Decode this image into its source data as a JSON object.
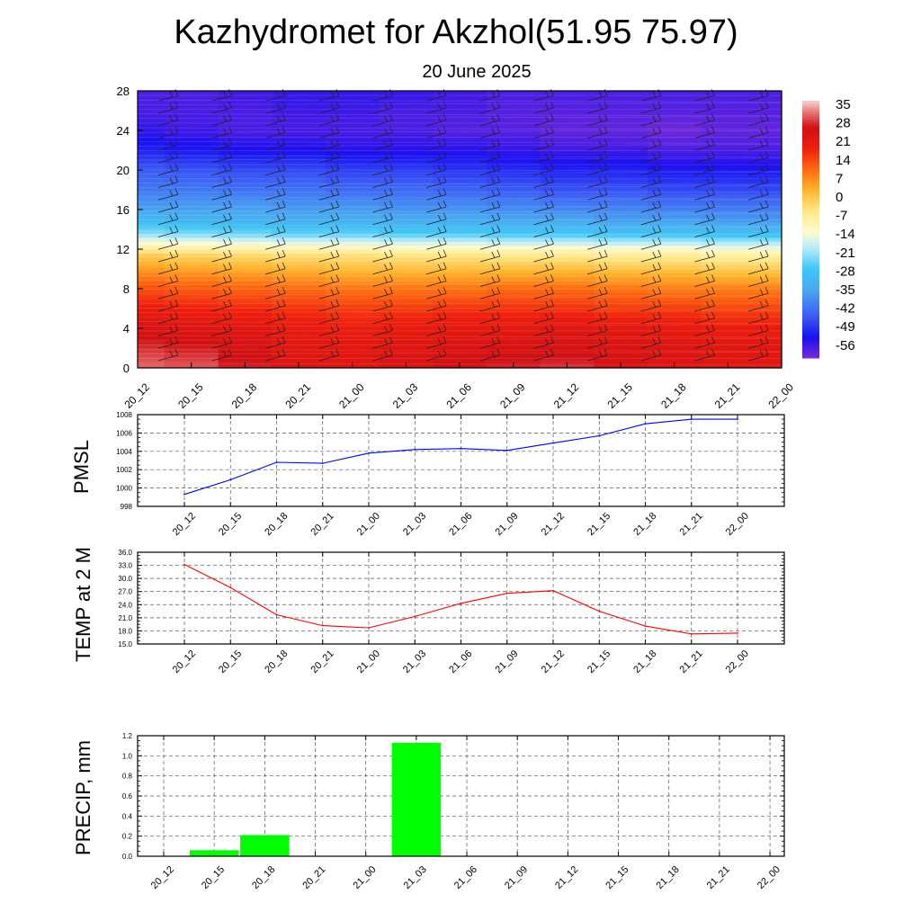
{
  "header": {
    "title": "Kazhydromet for Akzhol(51.95 75.97)",
    "subtitle": "20 June 2025"
  },
  "time_labels": [
    "20_12",
    "20_15",
    "20_18",
    "20_21",
    "21_00",
    "21_03",
    "21_06",
    "21_09",
    "21_12",
    "21_15",
    "21_18",
    "21_21",
    "22_00"
  ],
  "chart_data": [
    {
      "type": "heatmap",
      "name": "vertical temperature cross-section with wind barbs",
      "x": [
        "20_12",
        "20_15",
        "20_18",
        "20_21",
        "21_00",
        "21_03",
        "21_06",
        "21_09",
        "21_12",
        "21_15",
        "21_18",
        "21_21",
        "22_00"
      ],
      "y_ticks": [
        0,
        4,
        8,
        12,
        16,
        20,
        24,
        28
      ],
      "ylim": [
        0,
        28
      ],
      "colorbar_ticks": [
        35,
        28,
        21,
        14,
        7,
        0,
        -7,
        -14,
        -21,
        -28,
        -35,
        -42,
        -49,
        -56
      ],
      "colorbar_range": [
        -60,
        38
      ],
      "colorbar_stops": [
        {
          "v": -60,
          "color": "#7a2bd6"
        },
        {
          "v": -52,
          "color": "#1a10f0"
        },
        {
          "v": -44,
          "color": "#3b5cf5"
        },
        {
          "v": -34,
          "color": "#4aa8f0"
        },
        {
          "v": -26,
          "color": "#3fc6f5"
        },
        {
          "v": -18,
          "color": "#b6ecfb"
        },
        {
          "v": -12,
          "color": "#fffbd0"
        },
        {
          "v": -4,
          "color": "#ffe98c"
        },
        {
          "v": 4,
          "color": "#ffb52e"
        },
        {
          "v": 12,
          "color": "#ff6a10"
        },
        {
          "v": 20,
          "color": "#ee1e0e"
        },
        {
          "v": 28,
          "color": "#d11014"
        },
        {
          "v": 34,
          "color": "#e77a7a"
        },
        {
          "v": 38,
          "color": "#f6d2d2"
        }
      ],
      "temperature_profile_levels": [
        0,
        2,
        4,
        6,
        8,
        10,
        11.5,
        12.5,
        13.5,
        15,
        16.5,
        18,
        20,
        22,
        24,
        26,
        28
      ],
      "temperature_profiles": [
        [
          33,
          30,
          26,
          21,
          15,
          7,
          0,
          -10,
          -20,
          -30,
          -36,
          -40,
          -44,
          -50,
          -54,
          -56,
          -56
        ],
        [
          32,
          29,
          25,
          20,
          14,
          6,
          -1,
          -11,
          -21,
          -31,
          -36,
          -40,
          -45,
          -51,
          -55,
          -56,
          -56
        ],
        [
          29,
          27,
          24,
          19,
          13,
          5,
          -2,
          -12,
          -22,
          -31,
          -36,
          -41,
          -46,
          -52,
          -56,
          -56,
          -55
        ],
        [
          25,
          24,
          22,
          18,
          12,
          4,
          -3,
          -13,
          -23,
          -32,
          -37,
          -41,
          -46,
          -52,
          -56,
          -55,
          -54
        ],
        [
          24,
          24,
          21,
          17,
          11,
          3,
          -3,
          -13,
          -23,
          -32,
          -37,
          -42,
          -47,
          -53,
          -56,
          -55,
          -54
        ],
        [
          26,
          25,
          22,
          17,
          11,
          3,
          -4,
          -14,
          -24,
          -33,
          -38,
          -42,
          -47,
          -53,
          -56,
          -56,
          -54
        ],
        [
          28,
          26,
          23,
          18,
          11,
          3,
          -4,
          -14,
          -24,
          -33,
          -38,
          -43,
          -48,
          -53,
          -57,
          -56,
          -55
        ],
        [
          29,
          27,
          23,
          18,
          12,
          3,
          -5,
          -15,
          -25,
          -34,
          -39,
          -44,
          -49,
          -54,
          -57,
          -57,
          -56
        ],
        [
          30,
          27,
          24,
          18,
          12,
          3,
          -5,
          -15,
          -25,
          -34,
          -40,
          -45,
          -50,
          -55,
          -58,
          -57,
          -56
        ],
        [
          27,
          26,
          23,
          17,
          11,
          2,
          -6,
          -16,
          -26,
          -35,
          -40,
          -45,
          -50,
          -55,
          -58,
          -57,
          -56
        ],
        [
          25,
          25,
          22,
          17,
          10,
          2,
          -6,
          -16,
          -26,
          -35,
          -41,
          -46,
          -51,
          -56,
          -59,
          -57,
          -56
        ],
        [
          24,
          24,
          21,
          16,
          10,
          1,
          -7,
          -17,
          -27,
          -36,
          -41,
          -46,
          -51,
          -56,
          -58,
          -57,
          -56
        ],
        [
          24,
          24,
          21,
          16,
          10,
          1,
          -7,
          -17,
          -27,
          -36,
          -41,
          -46,
          -51,
          -56,
          -58,
          -57,
          -56
        ]
      ]
    },
    {
      "type": "line",
      "ylabel": "PMSL",
      "x": [
        "20_12",
        "20_15",
        "20_18",
        "20_21",
        "21_00",
        "21_03",
        "21_06",
        "21_09",
        "21_12",
        "21_15",
        "21_18",
        "21_21",
        "22_00"
      ],
      "y_ticks": [
        "998",
        "1000",
        "1002",
        "1004",
        "1006",
        "1008"
      ],
      "ylim": [
        998,
        1008
      ],
      "series": [
        {
          "values": [
            999.3,
            1000.9,
            1002.8,
            1002.7,
            1003.8,
            1004.2,
            1004.3,
            1004.1,
            1004.9,
            1005.7,
            1007.0,
            1007.5,
            1007.5
          ],
          "color": "#0000ff"
        }
      ],
      "grid": true
    },
    {
      "type": "line",
      "ylabel": "TEMP at 2 M",
      "x": [
        "20_12",
        "20_15",
        "20_18",
        "20_21",
        "21_00",
        "21_03",
        "21_06",
        "21_09",
        "21_12",
        "21_15",
        "21_18",
        "21_21",
        "22_00"
      ],
      "y_ticks": [
        "15.0",
        "18.0",
        "21.0",
        "24.0",
        "27.0",
        "30.0",
        "33.0",
        "36.0"
      ],
      "ylim": [
        15,
        36
      ],
      "series": [
        {
          "values": [
            33.2,
            27.9,
            21.7,
            19.2,
            18.7,
            21.3,
            24.3,
            26.6,
            27.2,
            22.5,
            19.1,
            17.3,
            17.5
          ],
          "color": "#ff0000"
        }
      ],
      "grid": true
    },
    {
      "type": "bar",
      "ylabel": "PRECIP, mm",
      "categories": [
        "20_12",
        "20_15",
        "20_18",
        "20_21",
        "21_00",
        "21_03",
        "21_06",
        "21_09",
        "21_12",
        "21_15",
        "21_18",
        "21_21",
        "22_00"
      ],
      "y_ticks": [
        "0.0",
        "0.2",
        "0.4",
        "0.6",
        "0.8",
        "1.0",
        "1.2"
      ],
      "ylim": [
        0,
        1.2
      ],
      "values": [
        0,
        0.06,
        0.21,
        0,
        0,
        1.13,
        0,
        0,
        0,
        0,
        0,
        0,
        0
      ],
      "bar_color": "#00ff00",
      "grid": true
    }
  ]
}
